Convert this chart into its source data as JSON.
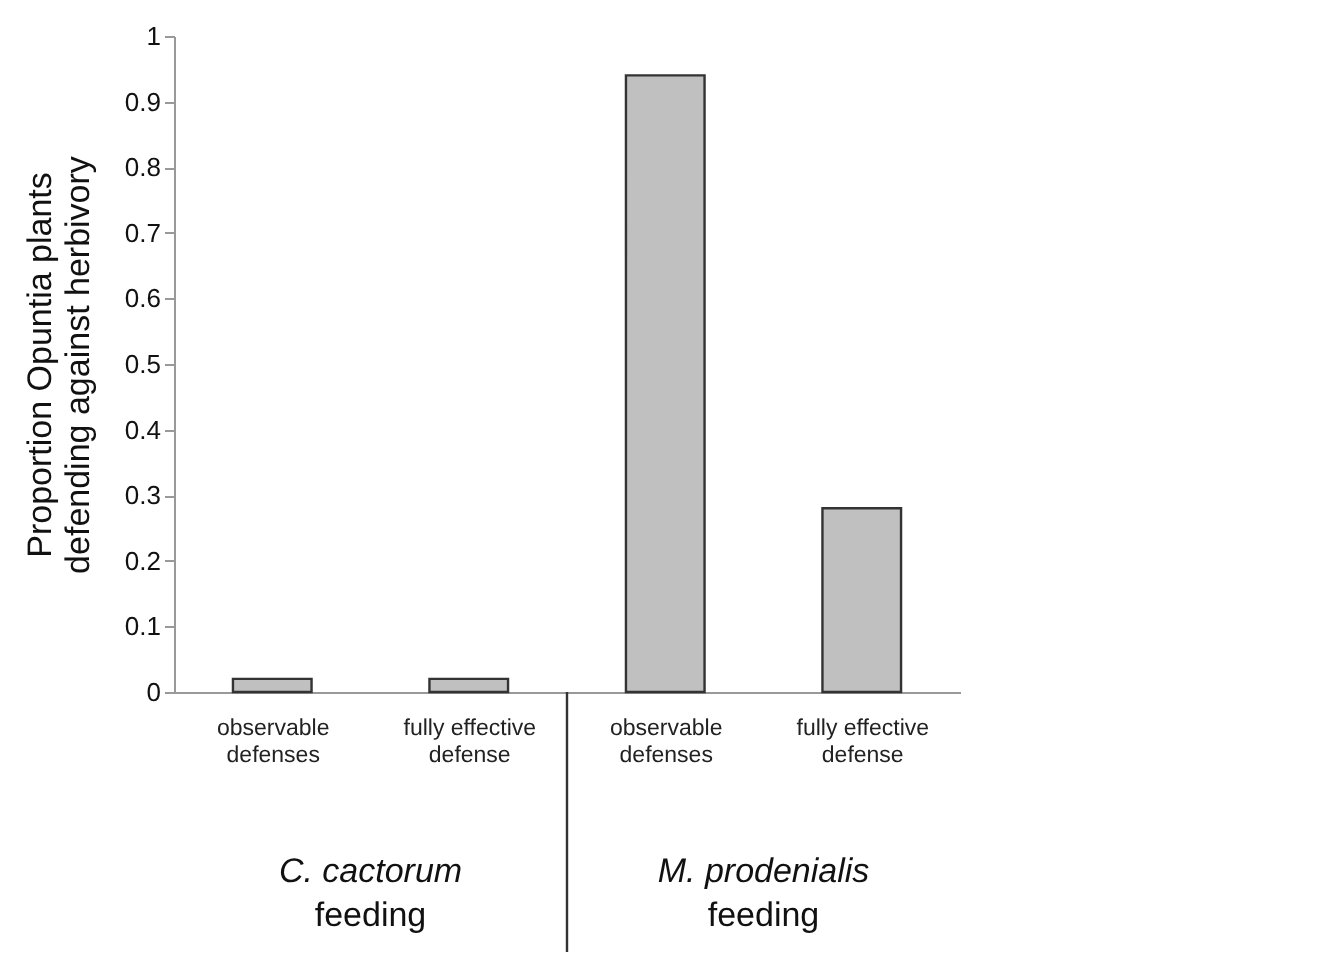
{
  "chart_data": {
    "type": "bar",
    "ylabel": "Proportion Opuntia plants defending against herbivory",
    "categories": [
      "observable defenses",
      "fully effective defense",
      "observable defenses",
      "fully effective defense"
    ],
    "values": [
      0.02,
      0.02,
      0.94,
      0.28
    ],
    "color": "#c0c0c0",
    "ylim": [
      0,
      1
    ],
    "yticks": [
      0,
      0.1,
      0.2,
      0.3,
      0.4,
      0.5,
      0.6,
      0.7,
      0.8,
      0.9,
      1
    ],
    "grid": false,
    "annotations": [
      "C. cactorum feeding",
      "M. prodenialis feeding"
    ]
  }
}
